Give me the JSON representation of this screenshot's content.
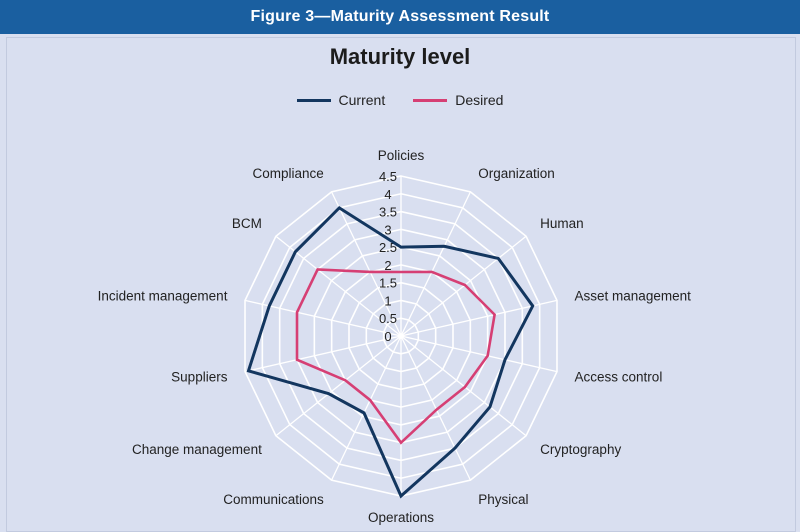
{
  "figure": {
    "banner": "Figure 3—Maturity Assessment Result"
  },
  "colors": {
    "banner": "#1a5fa0",
    "background": "#d9dff0",
    "current": "#13365f",
    "desired": "#d63f74",
    "grid": "#ffffff"
  },
  "chart_data": {
    "type": "radar",
    "title": "Maturity level",
    "legend_position": "top",
    "grid": true,
    "rlim": [
      0,
      4.5
    ],
    "ticks": [
      "0",
      "0.5",
      "1",
      "1.5",
      "2",
      "2.5",
      "3",
      "3.5",
      "4",
      "4.5"
    ],
    "categories": [
      "Policies",
      "Organization",
      "Human",
      "Asset management",
      "Access control",
      "Cryptography",
      "Physical",
      "Operations",
      "Communications",
      "Change management",
      "Suppliers",
      "Incident management",
      "BCM",
      "Compliance"
    ],
    "series": [
      {
        "name": "Current",
        "color": "#13365f",
        "values": [
          2.5,
          2.8,
          3.5,
          3.8,
          3.0,
          3.2,
          3.5,
          4.5,
          2.4,
          2.6,
          4.4,
          3.8,
          3.8,
          4.0
        ]
      },
      {
        "name": "Desired",
        "color": "#d63f74",
        "values": [
          1.8,
          2.0,
          2.3,
          2.7,
          2.5,
          2.3,
          2.3,
          3.0,
          2.0,
          2.0,
          3.0,
          3.0,
          3.0,
          2.0
        ]
      }
    ]
  }
}
